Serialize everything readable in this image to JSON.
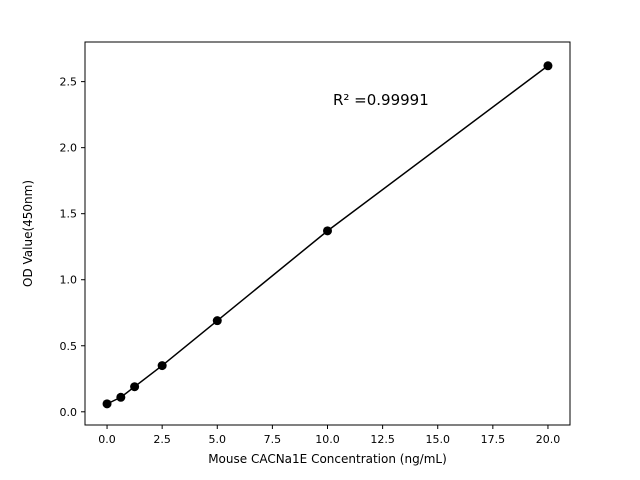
{
  "chart_data": {
    "type": "line",
    "markers": true,
    "x": [
      0,
      0.625,
      1.25,
      2.5,
      5,
      10,
      20
    ],
    "y": [
      0.06,
      0.11,
      0.19,
      0.35,
      0.69,
      1.37,
      2.62
    ],
    "xlabel": "Mouse CACNa1E Concentration (ng/mL)",
    "ylabel": "OD Value(450nm)",
    "annotation": "R² =0.99991",
    "xticks": [
      0,
      2.5,
      5,
      7.5,
      10,
      12.5,
      15,
      17.5,
      20
    ],
    "yticks": [
      0,
      0.5,
      1,
      1.5,
      2,
      2.5
    ],
    "xlim": [
      -1,
      21
    ],
    "ylim": [
      -0.1,
      2.8
    ],
    "grid": false,
    "legend_position": "none",
    "line_color": "#000000",
    "marker_color": "#000000",
    "axis_color": "#000000",
    "background_color": "#ffffff"
  }
}
